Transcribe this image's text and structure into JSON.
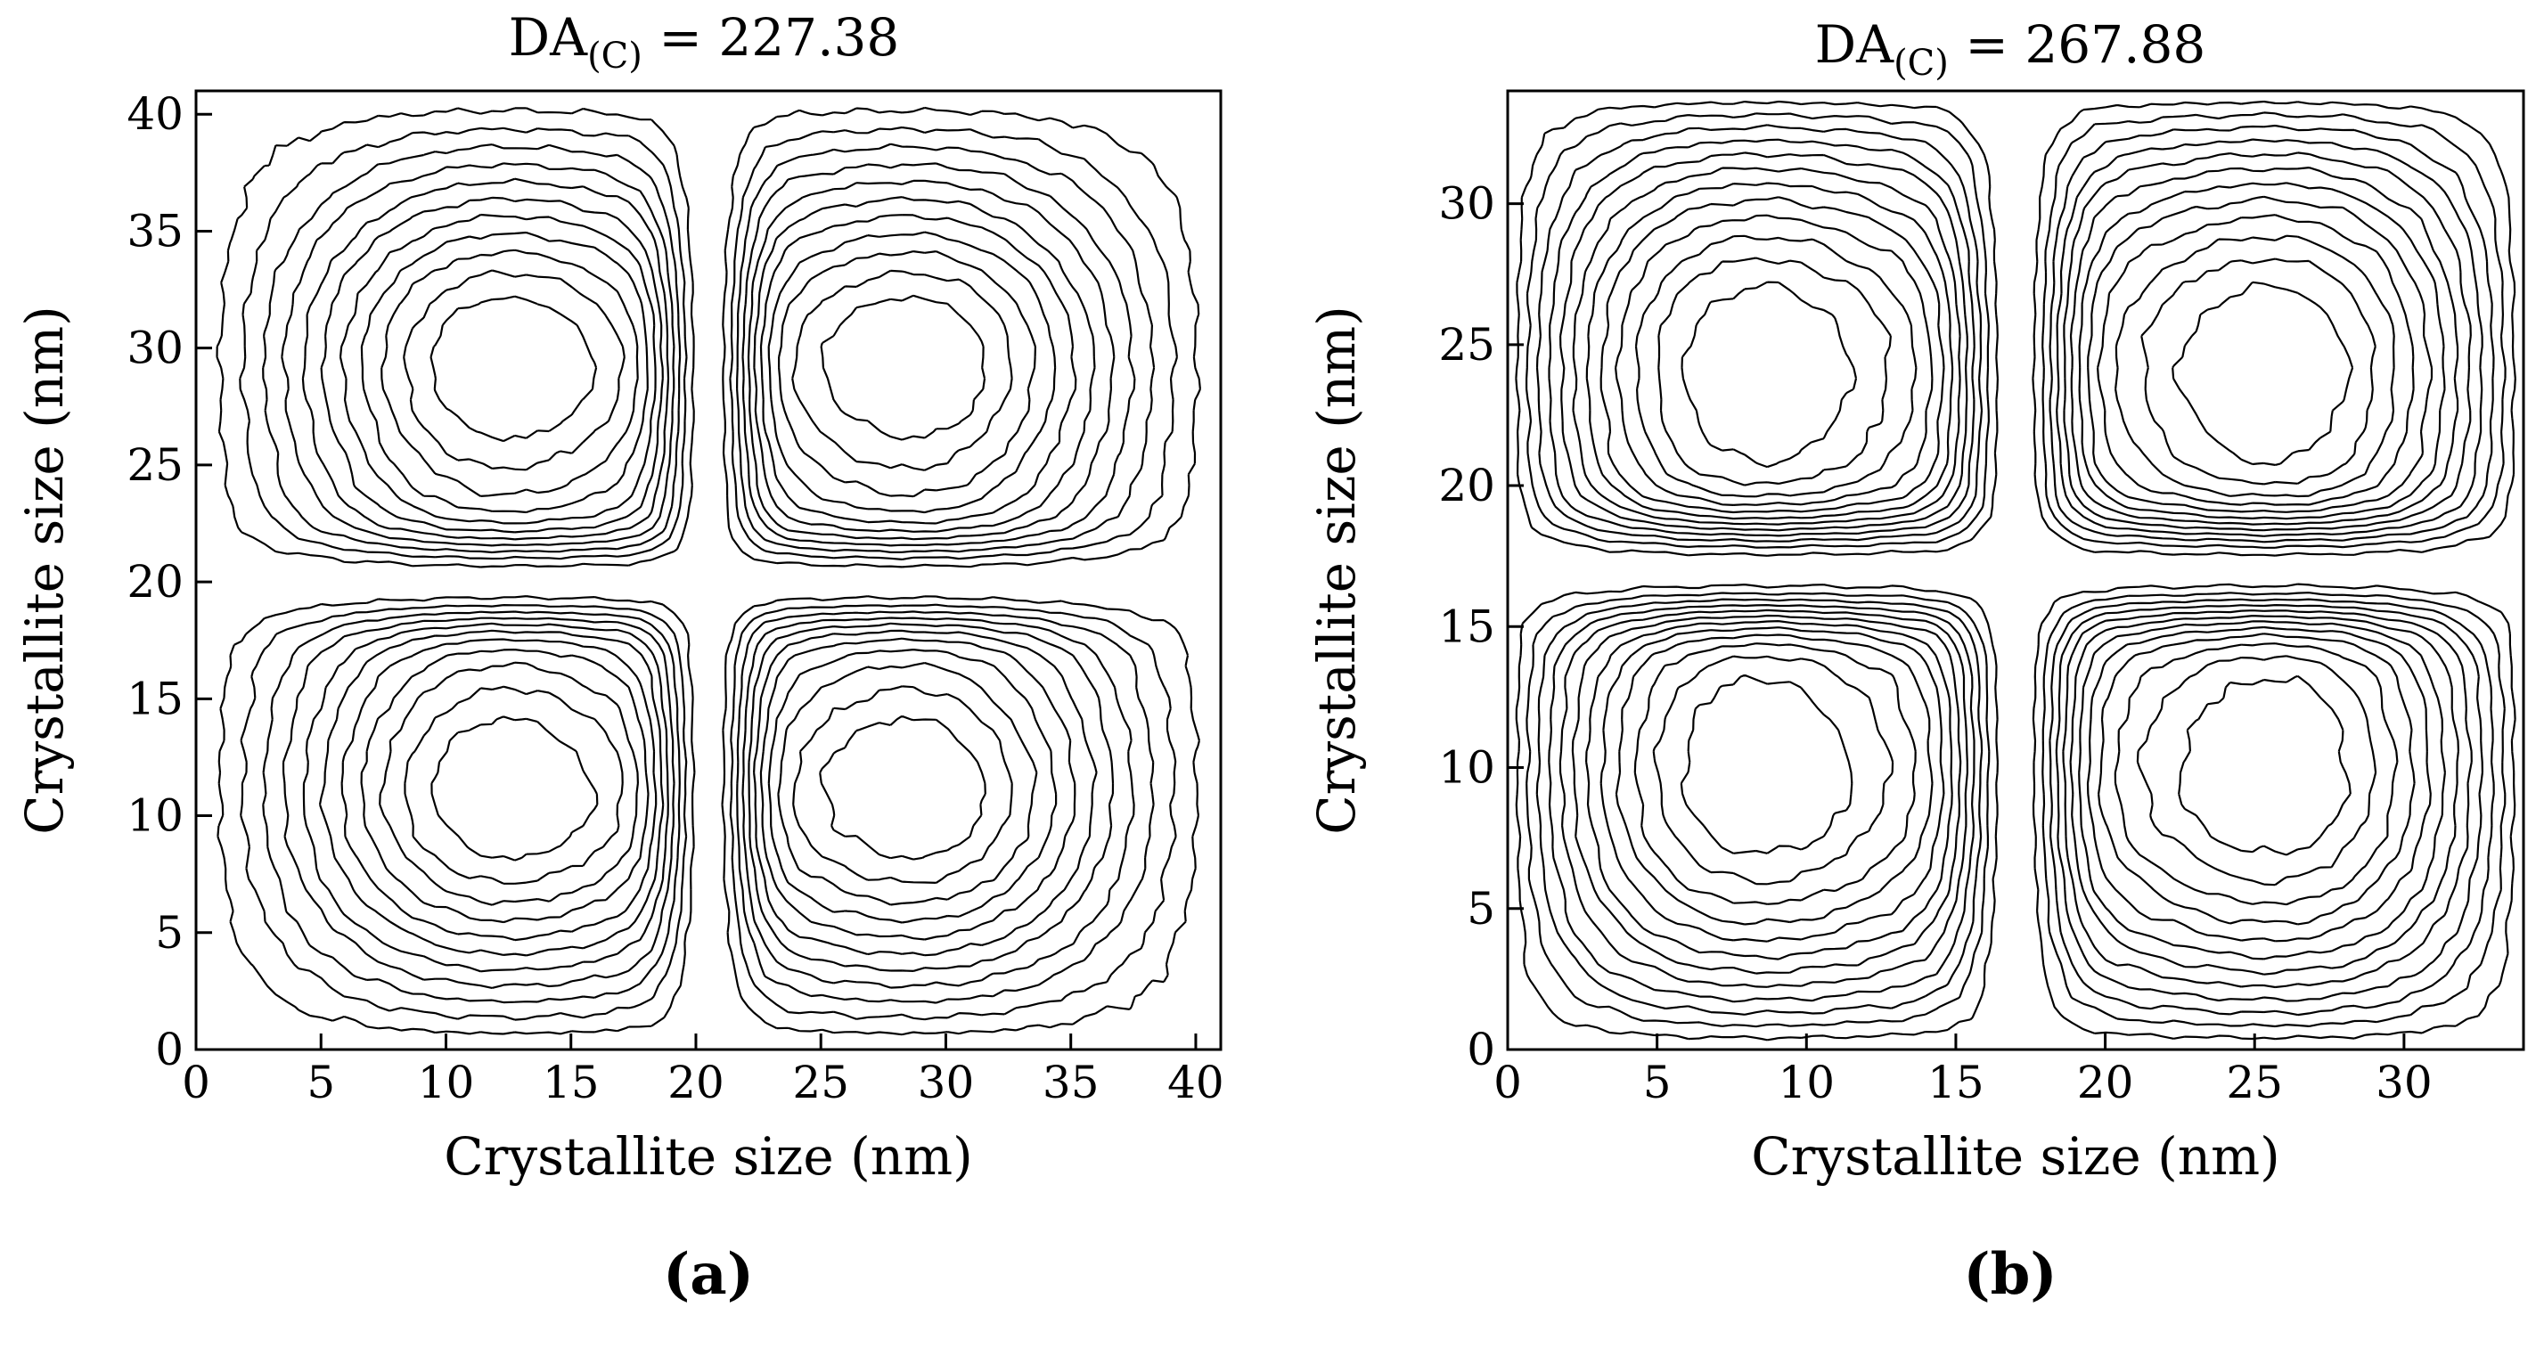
{
  "chart_data": [
    {
      "type": "contour",
      "panel_label": "(a)",
      "title": {
        "prefix": "DA",
        "subscript": "(C)",
        "suffix": " = 227.38"
      },
      "xlabel": "Crystallite size (nm)",
      "ylabel": "Crystallite size (nm)",
      "xlim": [
        0,
        41
      ],
      "ylim": [
        0,
        41
      ],
      "xticks": [
        0,
        5,
        10,
        15,
        20,
        25,
        30,
        35,
        40
      ],
      "yticks": [
        0,
        5,
        10,
        15,
        20,
        25,
        30,
        35,
        40
      ],
      "peaks": [
        {
          "x": 12,
          "y": 29.5
        },
        {
          "x": 29,
          "y": 29.5
        },
        {
          "x": 12,
          "y": 10.8
        },
        {
          "x": 29,
          "y": 10.8
        }
      ],
      "center": {
        "x": 20.5,
        "y": 20
      },
      "levels": 11
    },
    {
      "type": "contour",
      "panel_label": "(b)",
      "title": {
        "prefix": "DA",
        "subscript": "(C)",
        "suffix": " = 267.88"
      },
      "xlabel": "Crystallite size (nm)",
      "ylabel": "Crystallite size (nm)",
      "xlim": [
        0,
        34
      ],
      "ylim": [
        0,
        34
      ],
      "xticks": [
        0,
        5,
        10,
        15,
        20,
        25,
        30
      ],
      "yticks": [
        0,
        5,
        10,
        15,
        20,
        25,
        30
      ],
      "peaks": [
        {
          "x": 8,
          "y": 25
        },
        {
          "x": 26,
          "y": 25
        },
        {
          "x": 8,
          "y": 9
        },
        {
          "x": 26,
          "y": 9
        }
      ],
      "center": {
        "x": 17,
        "y": 17
      },
      "levels": 12
    }
  ]
}
